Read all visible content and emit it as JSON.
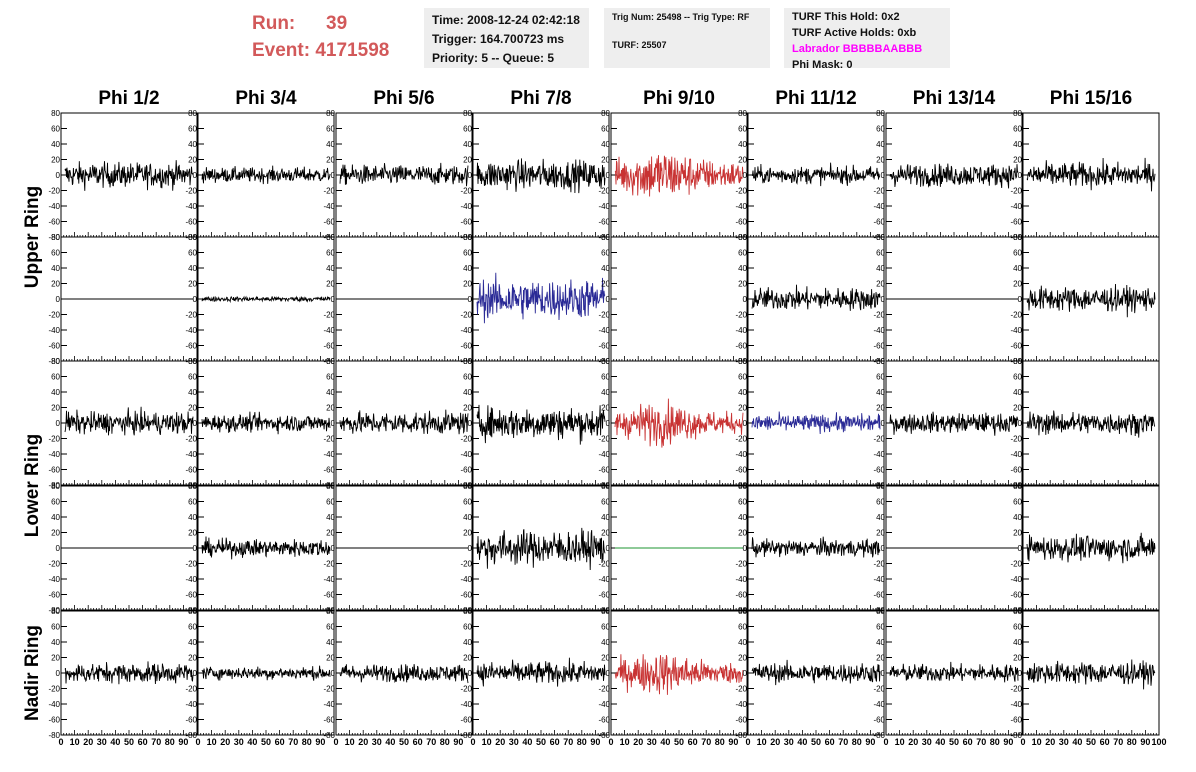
{
  "header": {
    "run_label": "Run:",
    "run_value": "39",
    "event_label": "Event:",
    "event_value": "4171598"
  },
  "info1": {
    "time": "Time: 2008-12-24 02:42:18",
    "trigger": "Trigger: 164.700723 ms",
    "priority": "Priority: 5 -- Queue: 5"
  },
  "info2": {
    "trig": "Trig Num: 25498 -- Trig Type: RF",
    "turf": "TURF: 25507"
  },
  "info3": {
    "hold": "TURF This Hold: 0x2",
    "active": "TURF Active Holds: 0xb",
    "labrador": "Labrador BBBBBAABBB",
    "phimask": "Phi Mask: 0"
  },
  "colors": {
    "trace_default": "#000000",
    "trace_red": "#c83232",
    "trace_blue": "#2a2a96",
    "trace_green": "#1e9632",
    "header_red": "#d2595a",
    "labrador_magenta": "#ff00ff"
  },
  "chart_data": {
    "type": "line",
    "columns": [
      "Phi 1/2",
      "Phi 3/4",
      "Phi 5/6",
      "Phi 7/8",
      "Phi 9/10",
      "Phi 11/12",
      "Phi 13/14",
      "Phi 15/16"
    ],
    "ring_labels": [
      {
        "name": "Upper Ring",
        "rows": [
          0,
          1
        ]
      },
      {
        "name": "Lower Ring",
        "rows": [
          2,
          3
        ]
      },
      {
        "name": "Nadir Ring",
        "rows": [
          4
        ]
      }
    ],
    "xlim": [
      0,
      100
    ],
    "ylim": [
      -80,
      80
    ],
    "yticks": [
      80,
      60,
      40,
      20,
      0,
      -20,
      -40,
      -60,
      -80
    ],
    "ytick_labels": [
      "80",
      "60",
      "40",
      "20",
      "0",
      "-20",
      "-40",
      "-60",
      "-80"
    ],
    "xtick_labels": [
      "0",
      "10",
      "20",
      "30",
      "40",
      "50",
      "60",
      "70",
      "80",
      "90",
      "100"
    ],
    "traces": [
      [
        {
          "color": "black",
          "amplitude": 20
        },
        {
          "color": "black",
          "amplitude": 12
        },
        {
          "color": "black",
          "amplitude": 16
        },
        {
          "color": "black",
          "amplitude": 24
        },
        {
          "color": "red",
          "amplitude": 38
        },
        {
          "color": "black",
          "amplitude": 14
        },
        {
          "color": "black",
          "amplitude": 18
        },
        {
          "color": "black",
          "amplitude": 20
        }
      ],
      [
        {
          "color": "black",
          "amplitude": 0
        },
        {
          "color": "black",
          "amplitude": 4
        },
        {
          "color": "black",
          "amplitude": 0
        },
        {
          "color": "blue",
          "amplitude": 32
        },
        {
          "color": "none",
          "amplitude": 0
        },
        {
          "color": "black",
          "amplitude": 18
        },
        {
          "color": "black",
          "amplitude": 0
        },
        {
          "color": "black",
          "amplitude": 20
        }
      ],
      [
        {
          "color": "black",
          "amplitude": 18
        },
        {
          "color": "black",
          "amplitude": 14
        },
        {
          "color": "black",
          "amplitude": 18
        },
        {
          "color": "black",
          "amplitude": 26
        },
        {
          "color": "red",
          "amplitude": 30
        },
        {
          "color": "blue",
          "amplitude": 14
        },
        {
          "color": "black",
          "amplitude": 16
        },
        {
          "color": "black",
          "amplitude": 18
        }
      ],
      [
        {
          "color": "black",
          "amplitude": 0
        },
        {
          "color": "black",
          "amplitude": 14
        },
        {
          "color": "black",
          "amplitude": 0
        },
        {
          "color": "black",
          "amplitude": 28
        },
        {
          "color": "green",
          "amplitude": 0
        },
        {
          "color": "black",
          "amplitude": 14
        },
        {
          "color": "black",
          "amplitude": 0
        },
        {
          "color": "black",
          "amplitude": 20
        }
      ],
      [
        {
          "color": "black",
          "amplitude": 16
        },
        {
          "color": "black",
          "amplitude": 10
        },
        {
          "color": "black",
          "amplitude": 14
        },
        {
          "color": "black",
          "amplitude": 18
        },
        {
          "color": "red",
          "amplitude": 30
        },
        {
          "color": "black",
          "amplitude": 16
        },
        {
          "color": "black",
          "amplitude": 14
        },
        {
          "color": "black",
          "amplitude": 18
        }
      ]
    ]
  }
}
